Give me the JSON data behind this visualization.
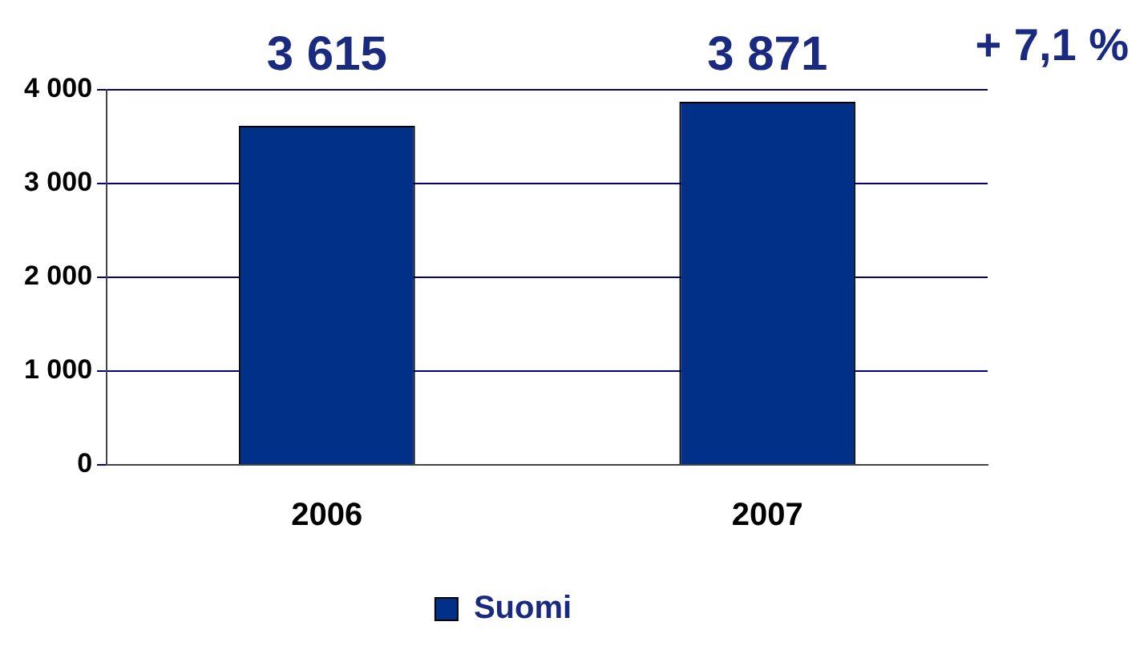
{
  "chart_data": {
    "type": "bar",
    "categories": [
      "2006",
      "2007"
    ],
    "series": [
      {
        "name": "Suomi",
        "color": "#003087",
        "values": [
          3615,
          3871
        ],
        "value_labels": [
          "3 615",
          "3 871"
        ]
      }
    ],
    "ylim": [
      0,
      4000
    ],
    "yticks": [
      {
        "value": 0,
        "label": "0"
      },
      {
        "value": 1000,
        "label": "1 000"
      },
      {
        "value": 2000,
        "label": "2 000"
      },
      {
        "value": 3000,
        "label": "3 000"
      },
      {
        "value": 4000,
        "label": "4 000"
      }
    ],
    "grid": "y",
    "legend": "bottom",
    "annotations": [
      "+ 7,1 %"
    ]
  }
}
